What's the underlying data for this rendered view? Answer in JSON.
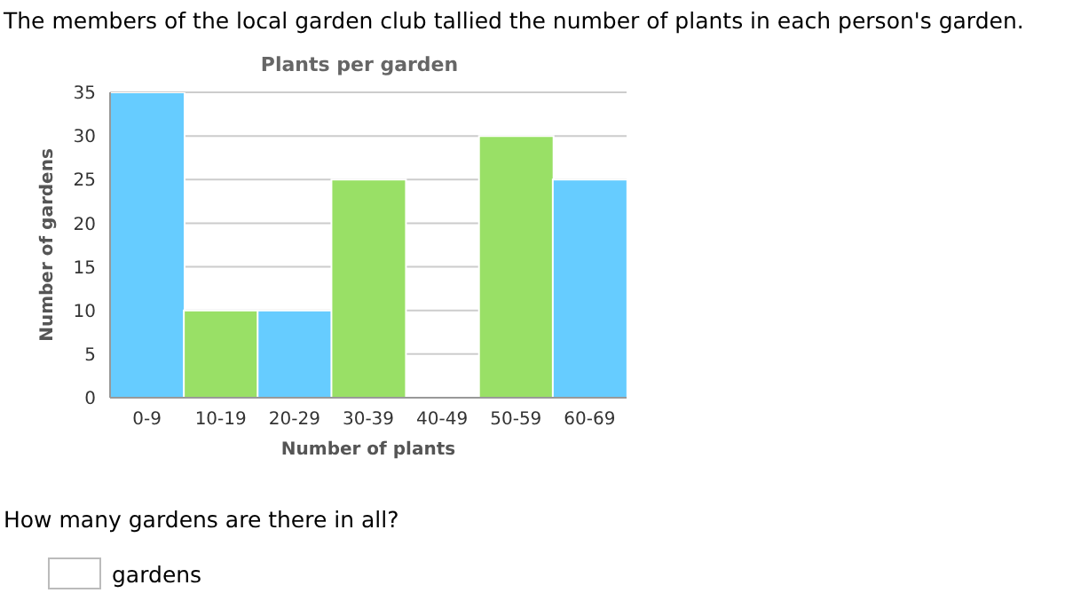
{
  "chart_data": {
    "type": "bar",
    "title": "Plants per garden",
    "xlabel": "Number of plants",
    "ylabel": "Number of gardens",
    "categories": [
      "0-9",
      "10-19",
      "20-29",
      "30-39",
      "40-49",
      "50-59",
      "60-69"
    ],
    "values": [
      35,
      10,
      10,
      25,
      0,
      30,
      25
    ],
    "colors": [
      "#66ccff",
      "#99e066",
      "#66ccff",
      "#99e066",
      "#66ccff",
      "#99e066",
      "#66ccff"
    ],
    "ylim": [
      0,
      35
    ],
    "yticks": [
      0,
      5,
      10,
      15,
      20,
      25,
      30,
      35
    ],
    "grid": "y",
    "annotations": [
      "The members of the local garden club tallied the number of plants in each person's garden.",
      "How many gardens are there in all?",
      "gardens"
    ]
  }
}
